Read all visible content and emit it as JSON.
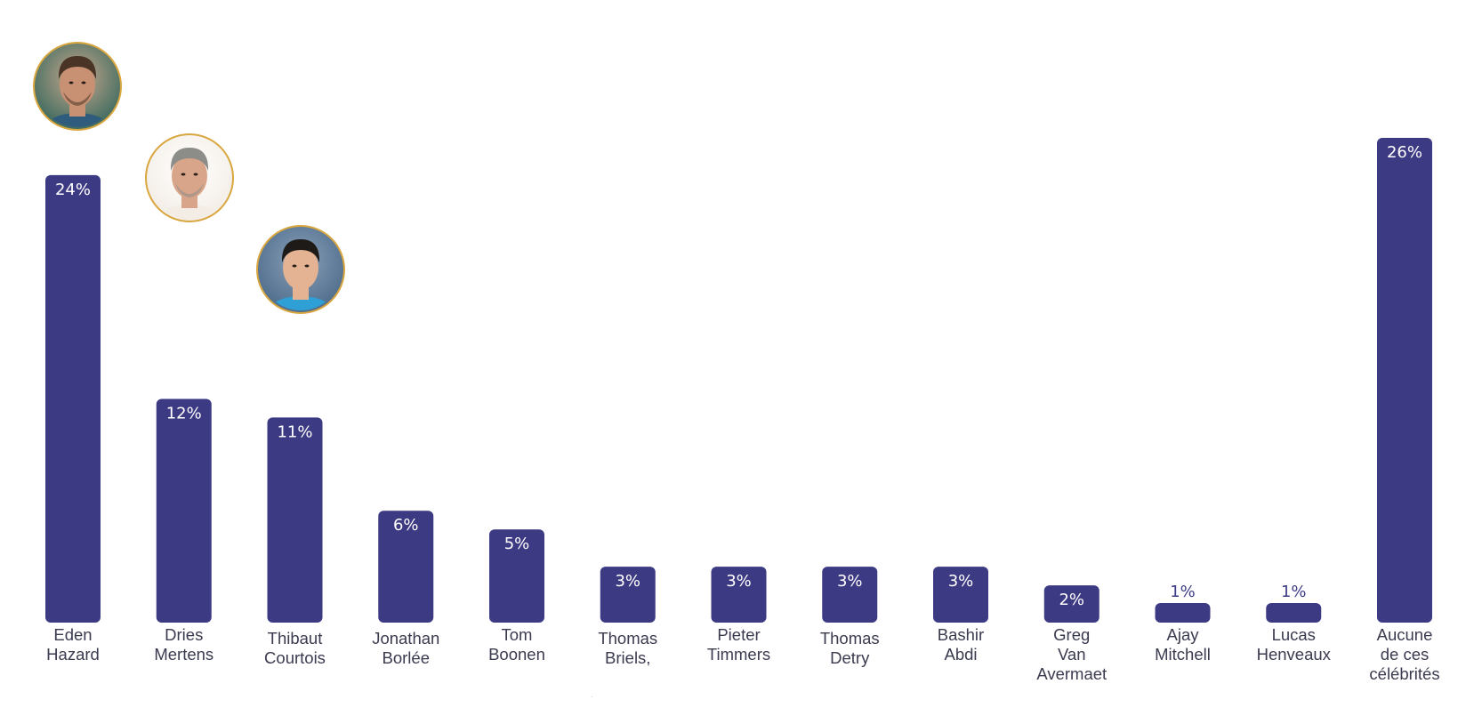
{
  "colors": {
    "bar": "#3d3a84",
    "bar_value_text": "#ffffff",
    "outside_value_text": "#3d3d86",
    "category_text": "#3b3b50",
    "photo_ring": "#d9a63f"
  },
  "chart_data": {
    "type": "bar",
    "orientation": "vertical",
    "value_unit": "%",
    "ylim": [
      0,
      26
    ],
    "grid": false,
    "legend": "none",
    "categories": [
      [
        "Eden",
        "Hazard"
      ],
      [
        "Dries",
        "Mertens"
      ],
      [
        "Thibaut",
        "Courtois"
      ],
      [
        "Jonathan",
        "Borlée"
      ],
      [
        "Tom",
        "Boonen"
      ],
      [
        "Thomas",
        "Briels,"
      ],
      [
        "Pieter",
        "Timmers"
      ],
      [
        "Thomas",
        "Detry"
      ],
      [
        "Bashir",
        "Abdi"
      ],
      [
        "Greg",
        "Van",
        "Avermaet"
      ],
      [
        "Ajay",
        "Mitchell"
      ],
      [
        "Lucas",
        "Henveaux"
      ],
      [
        "Aucune",
        "de ces",
        "célébrités"
      ]
    ],
    "values": [
      24,
      12,
      11,
      6,
      5,
      3,
      3,
      3,
      3,
      2,
      1,
      1,
      26
    ],
    "value_labels": [
      "24%",
      "12%",
      "11%",
      "6%",
      "5%",
      "3%",
      "3%",
      "3%",
      "3%",
      "2%",
      "1%",
      "1%",
      "26%"
    ],
    "photos": [
      {
        "category_index": 0,
        "icon": "person-photo-icon"
      },
      {
        "category_index": 1,
        "icon": "person-photo-icon"
      },
      {
        "category_index": 2,
        "icon": "person-photo-icon"
      }
    ]
  }
}
